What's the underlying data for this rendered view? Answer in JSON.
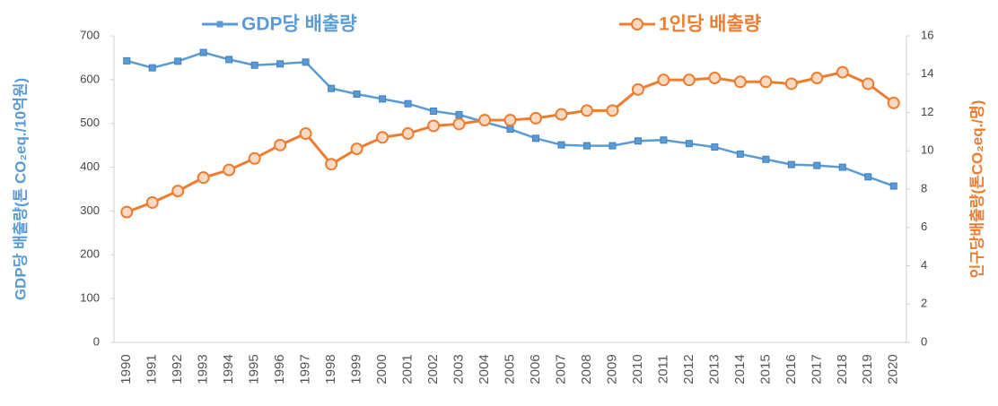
{
  "chart_data": {
    "type": "line",
    "categories": [
      "1990",
      "1991",
      "1992",
      "1993",
      "1994",
      "1995",
      "1996",
      "1997",
      "1998",
      "1999",
      "2000",
      "2001",
      "2002",
      "2003",
      "2004",
      "2005",
      "2006",
      "2007",
      "2008",
      "2009",
      "2010",
      "2011",
      "2012",
      "2013",
      "2014",
      "2015",
      "2016",
      "2017",
      "2018",
      "2019",
      "2020"
    ],
    "series": [
      {
        "name": "GDP당 배출량",
        "color": "#5b9bd5",
        "marker": "square",
        "values": [
          643,
          627,
          642,
          662,
          646,
          633,
          636,
          640,
          580,
          567,
          556,
          545,
          528,
          520,
          503,
          487,
          466,
          451,
          449,
          449,
          460,
          462,
          454,
          446,
          430,
          418,
          406,
          404,
          400,
          378,
          357
        ]
      },
      {
        "name": "1인당 배출량",
        "color": "#ed7d31",
        "marker": "circle",
        "axis": "y2",
        "values": [
          6.8,
          7.3,
          7.9,
          8.6,
          9.0,
          9.6,
          10.3,
          10.9,
          9.3,
          10.1,
          10.7,
          10.9,
          11.3,
          11.4,
          11.6,
          11.6,
          11.7,
          11.9,
          12.1,
          12.1,
          13.2,
          13.7,
          13.7,
          13.8,
          13.6,
          13.6,
          13.5,
          13.8,
          14.1,
          13.5,
          12.5
        ]
      }
    ],
    "ylabel": "GDP당 배출량(톤 CO₂eq./10억원)",
    "y2label": "인구당배출량(톤CO₂eq./명)",
    "ylim": [
      0,
      700
    ],
    "yticks": [
      0,
      100,
      200,
      300,
      400,
      500,
      600,
      700
    ],
    "y2lim": [
      0,
      16
    ],
    "y2ticks": [
      0,
      2,
      4,
      6,
      8,
      10,
      12,
      14,
      16
    ],
    "grid": false,
    "legend": "top"
  }
}
